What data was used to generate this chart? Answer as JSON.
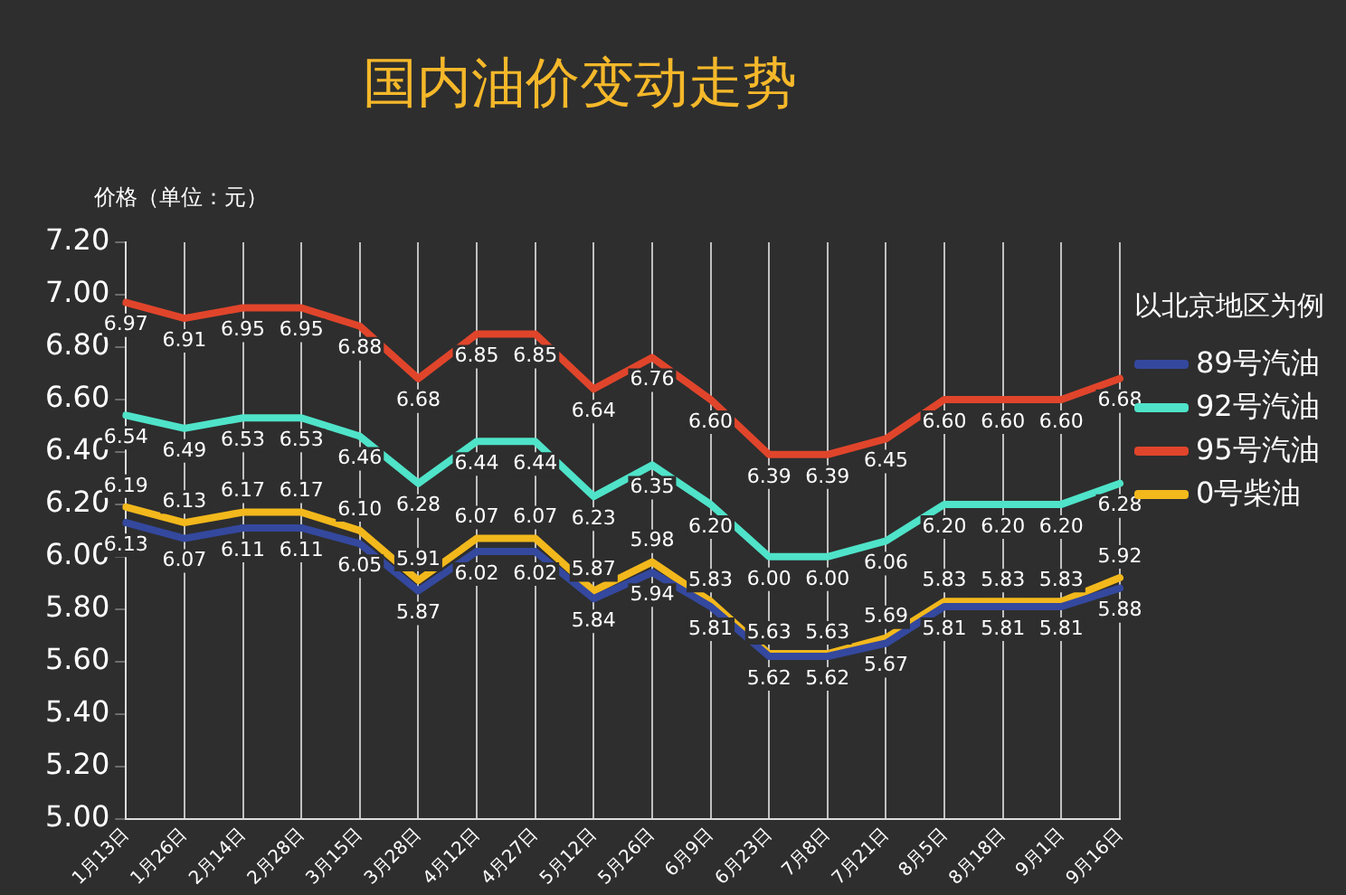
{
  "chart_data": {
    "type": "line",
    "title": "国内油价变动走势",
    "ylabel": "价格（单位：元）",
    "legend_title": "以北京地区为例",
    "categories": [
      "1月13日",
      "1月26日",
      "2月14日",
      "2月28日",
      "3月15日",
      "3月28日",
      "4月12日",
      "4月27日",
      "5月12日",
      "5月26日",
      "6月9日",
      "6月23日",
      "7月8日",
      "7月21日",
      "8月5日",
      "8月18日",
      "9月1日",
      "9月16日"
    ],
    "series": [
      {
        "name": "89号汽油",
        "color": "#34489e",
        "values": [
          6.13,
          6.07,
          6.11,
          6.11,
          6.05,
          5.87,
          6.02,
          6.02,
          5.84,
          5.94,
          5.81,
          5.62,
          5.62,
          5.67,
          5.81,
          5.81,
          5.81,
          5.88
        ],
        "value_labels": [
          "6.13",
          "6.07",
          "6.11",
          "6.11",
          "6.05",
          "5.87",
          "6.02",
          "6.02",
          "5.84",
          "5.94",
          "5.81",
          "5.62",
          "5.62",
          "5.67",
          "5.81",
          "5.81",
          "5.81",
          "5.88"
        ]
      },
      {
        "name": "92号汽油",
        "color": "#4fe3c9",
        "values": [
          6.54,
          6.49,
          6.53,
          6.53,
          6.46,
          6.28,
          6.44,
          6.44,
          6.23,
          6.35,
          6.2,
          6,
          6,
          6.06,
          6.2,
          6.2,
          6.2,
          6.28
        ],
        "value_labels": [
          "6.54",
          "6.49",
          "6.53",
          "6.53",
          "6.46",
          "6.28",
          "6.44",
          "6.44",
          "6.23",
          "6.35",
          "6.20",
          "6.00",
          "6.00",
          "6.06",
          "6.20",
          "6.20",
          "6.20",
          "6.28"
        ]
      },
      {
        "name": "95号汽油",
        "color": "#e0452b",
        "values": [
          6.97,
          6.91,
          6.95,
          6.95,
          6.88,
          6.68,
          6.85,
          6.85,
          6.64,
          6.76,
          6.6,
          6.39,
          6.39,
          6.45,
          6.6,
          6.6,
          6.6,
          6.68
        ],
        "value_labels": [
          "6.97",
          "6.91",
          "6.95",
          "6.95",
          "6.88",
          "6.68",
          "6.85",
          "6.85",
          "6.64",
          "6.76",
          "6.60",
          "6.39",
          "6.39",
          "6.45",
          "6.60",
          "6.60",
          "6.60",
          "6.68"
        ]
      },
      {
        "name": "0号柴油",
        "color": "#f2b81c",
        "values": [
          6.19,
          6.13,
          6.17,
          6.17,
          6.1,
          5.91,
          6.07,
          6.07,
          5.87,
          5.98,
          5.83,
          5.63,
          5.63,
          5.69,
          5.83,
          5.83,
          5.83,
          5.92
        ],
        "value_labels": [
          "6.19",
          "6.13",
          "6.17",
          "6.17",
          "6.10",
          "5.91",
          "6.07",
          "6.07",
          "5.87",
          "5.98",
          "5.83",
          "5.63",
          "5.63",
          "5.69",
          "5.83",
          "5.83",
          "5.83",
          "5.92"
        ]
      }
    ],
    "ylim": [
      5,
      7.2
    ],
    "yticks": [
      {
        "value": 5,
        "label": "5.00"
      },
      {
        "value": 5.2,
        "label": "5.20"
      },
      {
        "value": 5.4,
        "label": "5.40"
      },
      {
        "value": 5.6,
        "label": "5.60"
      },
      {
        "value": 5.8,
        "label": "5.80"
      },
      {
        "value": 6,
        "label": "6.00"
      },
      {
        "value": 6.2,
        "label": "6.20"
      },
      {
        "value": 6.4,
        "label": "6.40"
      },
      {
        "value": 6.6,
        "label": "6.60"
      },
      {
        "value": 6.8,
        "label": "6.80"
      },
      {
        "value": 7,
        "label": "7.00"
      },
      {
        "value": 7.2,
        "label": "7.20"
      }
    ],
    "grid": "x",
    "legend": "right",
    "marker": "none",
    "line_style": "solid"
  }
}
